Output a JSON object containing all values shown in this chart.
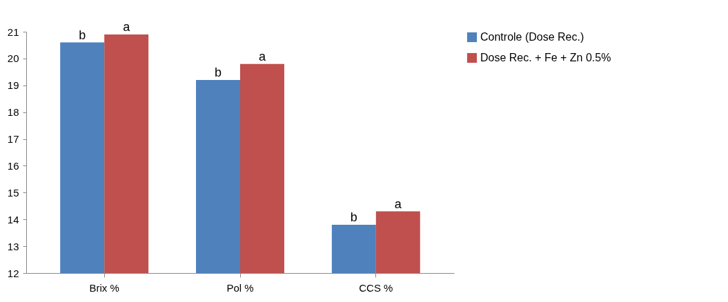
{
  "chart_data": {
    "type": "bar",
    "categories": [
      "Brix %",
      "Pol %",
      "CCS %"
    ],
    "series": [
      {
        "name": "Controle (Dose Rec.)",
        "color": "#4f81bd",
        "values": [
          20.6,
          19.2,
          13.8
        ],
        "value_labels": [
          "b",
          "b",
          "b"
        ]
      },
      {
        "name": "Dose Rec. + Fe + Zn 0.5%",
        "color": "#c0504d",
        "values": [
          20.9,
          19.8,
          14.3
        ],
        "value_labels": [
          "a",
          "a",
          "a"
        ]
      }
    ],
    "ylim": [
      12,
      21
    ],
    "yticks": [
      12,
      13,
      14,
      15,
      16,
      17,
      18,
      19,
      20,
      21
    ],
    "grid": false,
    "legend": "right"
  }
}
